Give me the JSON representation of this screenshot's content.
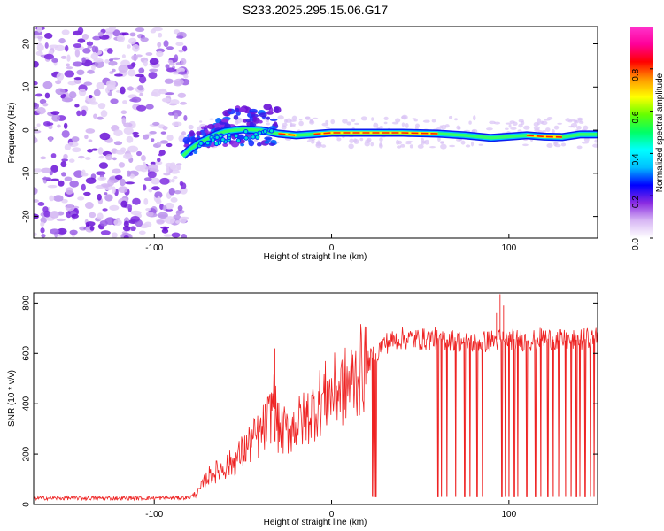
{
  "chart_data": [
    {
      "type": "heatmap",
      "title": "S233.2025.295.15.06.G17",
      "xlabel": "Height of straight line (km)",
      "ylabel": "Frequency (Hz)",
      "xlim": [
        -168,
        150
      ],
      "ylim": [
        -25,
        24
      ],
      "xticks": [
        "-100",
        "0",
        "100"
      ],
      "yticks": [
        "-20",
        "-10",
        "0",
        "10",
        "20"
      ],
      "colorbar": {
        "label": "Normalized spectral amplitude",
        "range": [
          0,
          1
        ],
        "ticks": [
          "0.0",
          "0.2",
          "0.4",
          "0.6",
          "0.8"
        ],
        "colors": [
          "#ffffff",
          "#d7b6f4",
          "#8a2be2",
          "#0000ff",
          "#00bfff",
          "#00ffff",
          "#00ff66",
          "#66ff00",
          "#ffff00",
          "#ff9900",
          "#ff0000",
          "#ff0099",
          "#ff33cc"
        ]
      },
      "ridge": [
        {
          "x": -84,
          "y": -6.0
        },
        {
          "x": -80,
          "y": -4.5
        },
        {
          "x": -75,
          "y": -3.0
        },
        {
          "x": -70,
          "y": -2.0
        },
        {
          "x": -65,
          "y": -1.0
        },
        {
          "x": -60,
          "y": -0.3
        },
        {
          "x": -55,
          "y": 0.0
        },
        {
          "x": -50,
          "y": 0.2
        },
        {
          "x": -40,
          "y": 0.0
        },
        {
          "x": -30,
          "y": -0.8
        },
        {
          "x": -20,
          "y": -1.2
        },
        {
          "x": -10,
          "y": -0.9
        },
        {
          "x": 0,
          "y": -0.6
        },
        {
          "x": 20,
          "y": -0.6
        },
        {
          "x": 40,
          "y": -0.6
        },
        {
          "x": 60,
          "y": -0.8
        },
        {
          "x": 75,
          "y": -1.2
        },
        {
          "x": 90,
          "y": -1.8
        },
        {
          "x": 100,
          "y": -1.5
        },
        {
          "x": 110,
          "y": -1.2
        },
        {
          "x": 120,
          "y": -1.5
        },
        {
          "x": 130,
          "y": -1.6
        },
        {
          "x": 140,
          "y": -1.0
        },
        {
          "x": 150,
          "y": -1.0
        }
      ],
      "noise_region": {
        "x_from": -168,
        "x_to": -82
      }
    },
    {
      "type": "line",
      "xlabel": "Height of straight line (km)",
      "ylabel": "SNR (10 * v/v)",
      "xlim": [
        -168,
        150
      ],
      "ylim": [
        0,
        840
      ],
      "xticks": [
        "-100",
        "0",
        "100"
      ],
      "yticks": [
        "0",
        "200",
        "400",
        "600",
        "800"
      ],
      "color": "#ee2222",
      "series": [
        {
          "name": "SNR",
          "x": [
            -168,
            -140,
            -110,
            -90,
            -80,
            -75,
            -70,
            -65,
            -60,
            -55,
            -50,
            -45,
            -40,
            -35,
            -33,
            -30,
            -25,
            -20,
            -15,
            -10,
            -5,
            0,
            5,
            10,
            15,
            20,
            25,
            30,
            40,
            50,
            60,
            70,
            80,
            90,
            100,
            110,
            120,
            130,
            140,
            150
          ],
          "values": [
            25,
            25,
            25,
            25,
            28,
            50,
            110,
            130,
            150,
            170,
            210,
            250,
            280,
            340,
            420,
            300,
            290,
            320,
            340,
            380,
            420,
            440,
            460,
            480,
            520,
            560,
            600,
            640,
            660,
            655,
            660,
            650,
            640,
            650,
            660,
            650,
            660,
            650,
            655,
            660
          ],
          "dropouts": [
            23,
            24,
            25,
            60,
            62,
            65,
            70,
            75,
            78,
            82,
            85,
            96,
            98,
            100,
            103,
            105,
            110,
            115,
            118,
            122,
            125,
            128,
            132,
            135,
            138,
            140,
            143,
            146,
            148
          ],
          "spikes": [
            {
              "x": -32,
              "y": 620
            },
            {
              "x": 95,
              "y": 835
            },
            {
              "x": 97,
              "y": 790
            },
            {
              "x": 93,
              "y": 760
            }
          ]
        }
      ]
    }
  ]
}
